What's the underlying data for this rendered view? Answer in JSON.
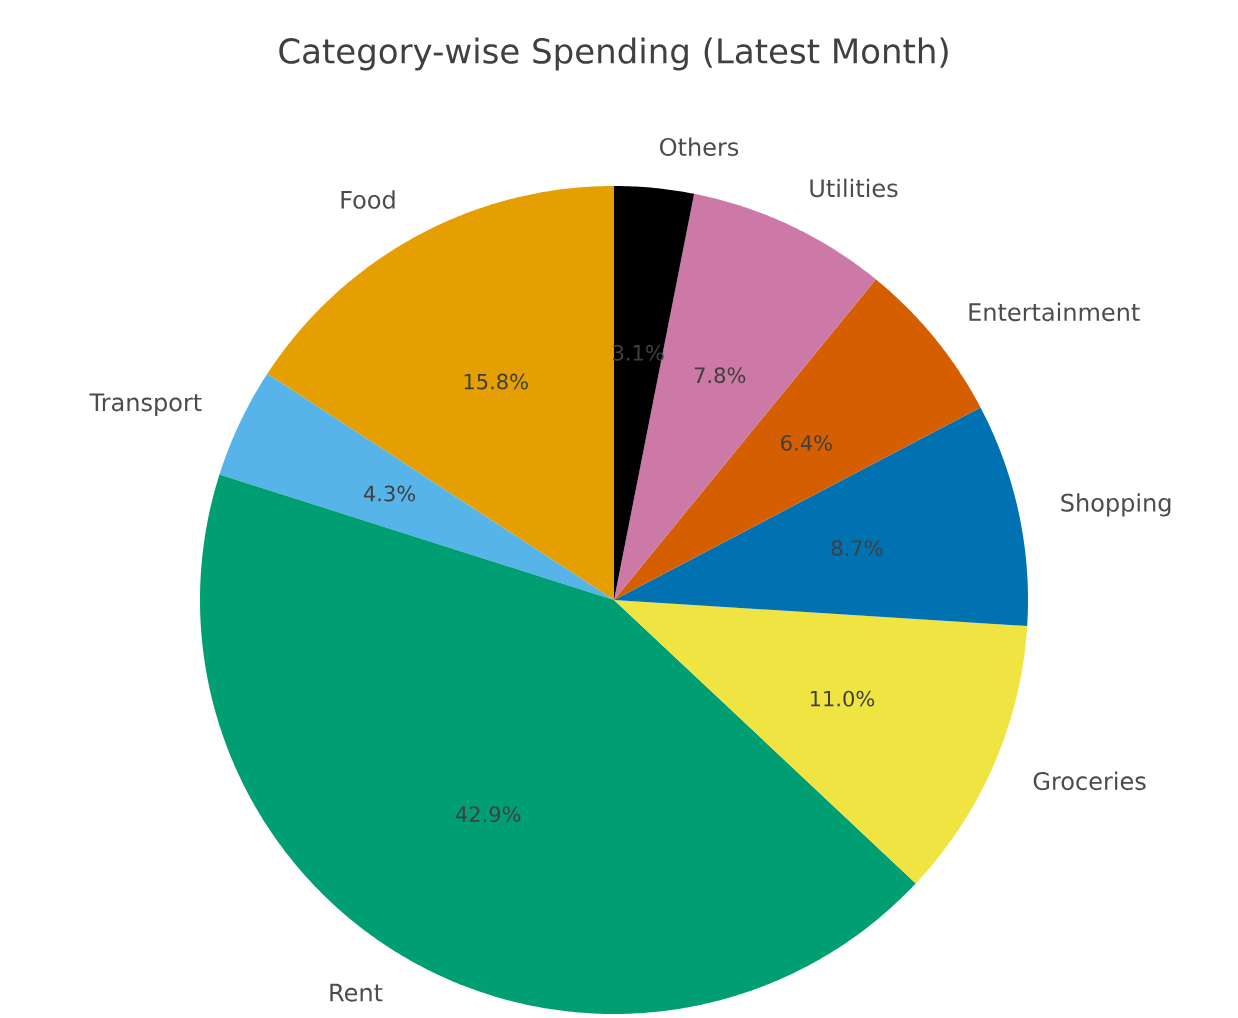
{
  "chart_data": {
    "type": "pie",
    "title": "Category-wise Spending (Latest Month)",
    "categories": [
      "Food",
      "Transport",
      "Rent",
      "Groceries",
      "Shopping",
      "Entertainment",
      "Utilities",
      "Others"
    ],
    "values": [
      15.8,
      4.3,
      42.9,
      11.0,
      8.7,
      6.4,
      7.8,
      3.1
    ],
    "value_labels": [
      "15.8%",
      "4.3%",
      "42.9%",
      "11.0%",
      "8.7%",
      "6.4%",
      "7.8%",
      "3.1%"
    ],
    "colors": [
      "#e69f00",
      "#56b4e9",
      "#009e73",
      "#f0e442",
      "#0072b2",
      "#d55e00",
      "#cc79a7",
      "#000000"
    ]
  }
}
